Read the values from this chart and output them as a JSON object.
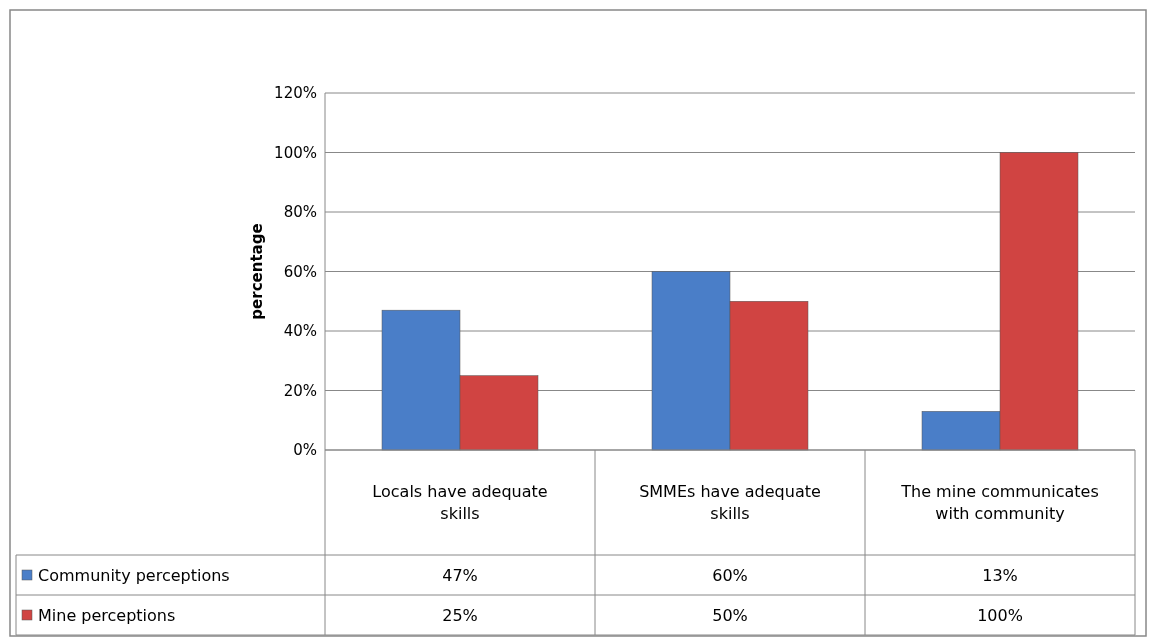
{
  "chart_data": {
    "type": "bar",
    "ylabel": "percentage",
    "categories": [
      "Locals have adequate skills",
      "SMMEs have adequate skills",
      "The mine communicates with community"
    ],
    "series": [
      {
        "name": "Community perceptions",
        "color": "#4a7ec8",
        "values": [
          47,
          60,
          13
        ],
        "value_labels": [
          "47%",
          "60%",
          "13%"
        ]
      },
      {
        "name": "Mine perceptions",
        "color": "#d04442",
        "values": [
          25,
          50,
          100
        ],
        "value_labels": [
          "25%",
          "50%",
          "100%"
        ]
      }
    ],
    "ylim": [
      0,
      120
    ],
    "yticks": [
      {
        "value": 0,
        "label": "0%"
      },
      {
        "value": 20,
        "label": "20%"
      },
      {
        "value": 40,
        "label": "40%"
      },
      {
        "value": 60,
        "label": "60%"
      },
      {
        "value": 80,
        "label": "80%"
      },
      {
        "value": 100,
        "label": "100%"
      },
      {
        "value": 120,
        "label": "120%"
      }
    ],
    "grid": "y",
    "legend": "bottom left"
  }
}
